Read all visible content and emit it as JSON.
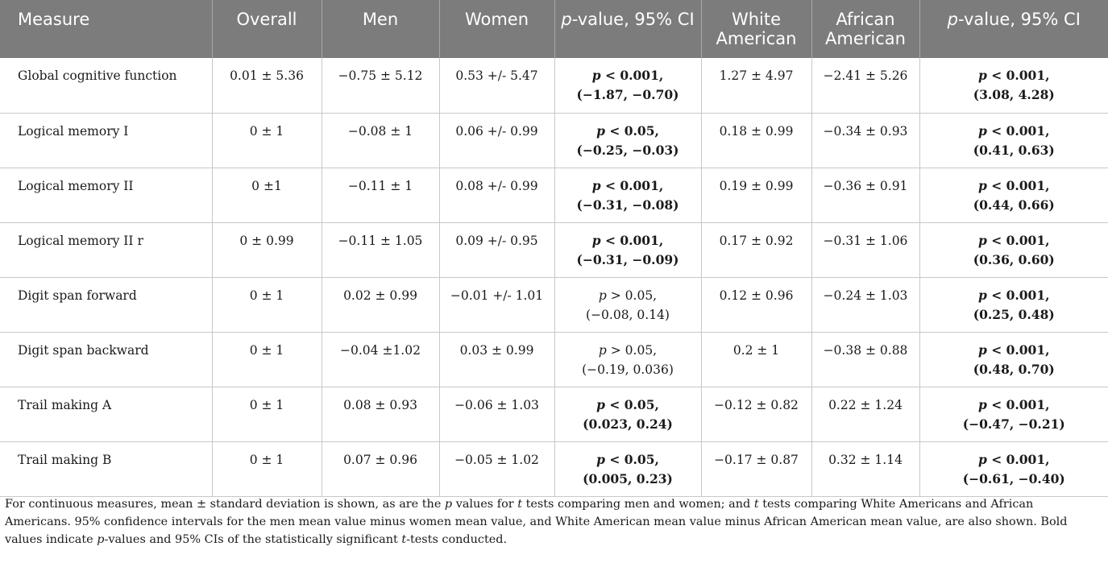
{
  "headers": [
    {
      "text": "Measure",
      "italic_prefix": ""
    },
    {
      "text": "Overall",
      "italic_prefix": ""
    },
    {
      "text": "Men",
      "italic_prefix": ""
    },
    {
      "text": "Women",
      "italic_prefix": ""
    },
    {
      "text": "-value, 95% CI",
      "italic_prefix": "p"
    },
    {
      "text": "White American",
      "italic_prefix": ""
    },
    {
      "text": "African American",
      "italic_prefix": ""
    },
    {
      "text": "-value, 95% CI",
      "italic_prefix": "p"
    }
  ],
  "rows": [
    {
      "measure": "Global cognitive function",
      "overall": "0.01 ± 5.36",
      "men": "−0.75 ± 5.12",
      "women": "0.53 +/- 5.47",
      "p1": {
        "p": " < 0.001,",
        "ci": "(−1.87, −0.70)",
        "sig": true
      },
      "white": "1.27 ± 4.97",
      "african": "−2.41 ± 5.26",
      "p2": {
        "p": " < 0.001,",
        "ci": "(3.08, 4.28)",
        "sig": true
      }
    },
    {
      "measure": "Logical memory I",
      "overall": "0 ± 1",
      "men": "−0.08 ± 1",
      "women": "0.06 +/- 0.99",
      "p1": {
        "p": " < 0.05,",
        "ci": "(−0.25, −0.03)",
        "sig": true
      },
      "white": "0.18 ± 0.99",
      "african": "−0.34 ± 0.93",
      "p2": {
        "p": " < 0.001,",
        "ci": "(0.41, 0.63)",
        "sig": true
      }
    },
    {
      "measure": "Logical memory II",
      "overall": "0 ±1",
      "men": "−0.11 ± 1",
      "women": "0.08 +/- 0.99",
      "p1": {
        "p": " < 0.001,",
        "ci": "(−0.31, −0.08)",
        "sig": true
      },
      "white": "0.19 ± 0.99",
      "african": "−0.36 ± 0.91",
      "p2": {
        "p": " < 0.001,",
        "ci": "(0.44, 0.66)",
        "sig": true
      }
    },
    {
      "measure": "Logical memory II r",
      "overall": "0 ± 0.99",
      "men": "−0.11 ± 1.05",
      "women": "0.09 +/- 0.95",
      "p1": {
        "p": " < 0.001,",
        "ci": "(−0.31, −0.09)",
        "sig": true
      },
      "white": "0.17 ± 0.92",
      "african": "−0.31 ± 1.06",
      "p2": {
        "p": " < 0.001,",
        "ci": "(0.36, 0.60)",
        "sig": true
      }
    },
    {
      "measure": "Digit span forward",
      "overall": "0 ± 1",
      "men": "0.02 ± 0.99",
      "women": "−0.01 +/- 1.01",
      "p1": {
        "p": " > 0.05,",
        "ci": "(−0.08, 0.14)",
        "sig": false
      },
      "white": "0.12 ± 0.96",
      "african": "−0.24 ± 1.03",
      "p2": {
        "p": " < 0.001,",
        "ci": "(0.25, 0.48)",
        "sig": true
      }
    },
    {
      "measure": "Digit span backward",
      "overall": "0 ± 1",
      "men": "−0.04 ±1.02",
      "women": "0.03 ± 0.99",
      "p1": {
        "p": " > 0.05,",
        "ci": "(−0.19, 0.036)",
        "sig": false
      },
      "white": "0.2 ± 1",
      "african": "−0.38 ± 0.88",
      "p2": {
        "p": " < 0.001,",
        "ci": "(0.48, 0.70)",
        "sig": true
      }
    },
    {
      "measure": "Trail making A",
      "overall": "0 ± 1",
      "men": "0.08 ± 0.93",
      "women": "−0.06 ± 1.03",
      "p1": {
        "p": " < 0.05,",
        "ci": "(0.023, 0.24)",
        "sig": true
      },
      "white": "−0.12 ± 0.82",
      "african": "0.22 ± 1.24",
      "p2": {
        "p": " < 0.001,",
        "ci": "(−0.47, −0.21)",
        "sig": true
      }
    },
    {
      "measure": "Trail making B",
      "overall": "0 ± 1",
      "men": "0.07 ± 0.96",
      "women": "−0.05 ± 1.02",
      "p1": {
        "p": " < 0.05,",
        "ci": "(0.005, 0.23)",
        "sig": true
      },
      "white": "−0.17 ± 0.87",
      "african": "0.32 ± 1.14",
      "p2": {
        "p": " < 0.001,",
        "ci": "(−0.61, −0.40)",
        "sig": true
      }
    }
  ],
  "footnote": {
    "s1": "For continuous measures, mean ± standard deviation is shown, as are the ",
    "s2": "p",
    "s3": " values for ",
    "s4": "t",
    "s5": " tests comparing men and women; and ",
    "s6": "t",
    "s7": " tests comparing White Americans and African Americans. 95% confidence intervals for the men mean value minus women mean value, and White American mean value minus African American mean value, are also shown. Bold values indicate ",
    "s8": "p",
    "s9": "-values and 95% CIs of the statistically significant ",
    "s10": "t",
    "s11": "-tests conducted."
  }
}
